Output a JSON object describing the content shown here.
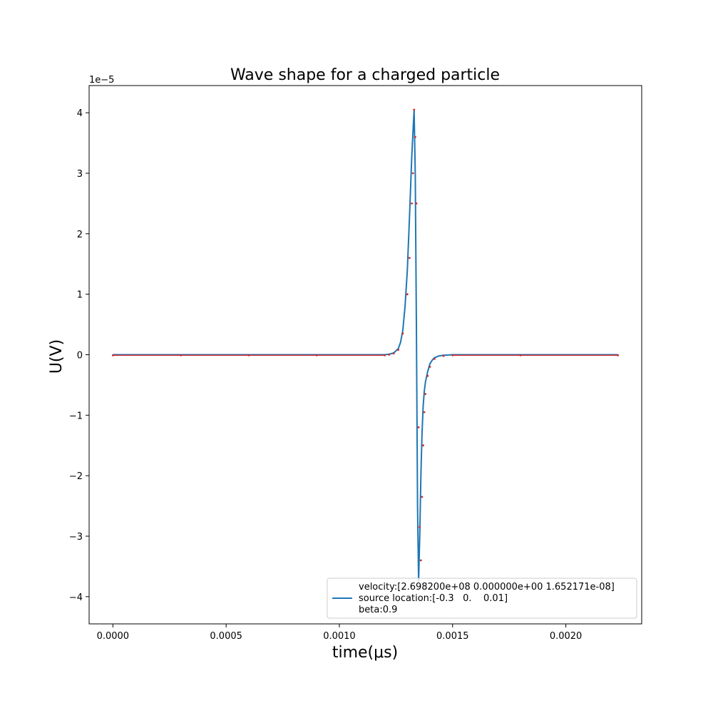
{
  "chart_data": {
    "type": "line",
    "title": "Wave shape for a charged particle",
    "xlabel": "time(μs)",
    "ylabel": "U(V)",
    "y_offset_label": "1e−5",
    "xlim": [
      -0.000105,
      0.002335
    ],
    "ylim": [
      -4.45,
      4.45
    ],
    "y_scale": 1e-05,
    "x_ticks": [
      0.0,
      0.0005,
      0.001,
      0.0015,
      0.002
    ],
    "x_tick_labels": [
      "0.0000",
      "0.0005",
      "0.0010",
      "0.0015",
      "0.0020"
    ],
    "y_ticks": [
      -4,
      -3,
      -2,
      -1,
      0,
      1,
      2,
      3,
      4
    ],
    "y_tick_labels": [
      "−4",
      "−3",
      "−2",
      "−1",
      "0",
      "1",
      "2",
      "3",
      "4"
    ],
    "grid": false,
    "legend_position": "lower-right",
    "legend_lines": [
      "velocity:[2.698200e+08 0.000000e+00 1.652171e-08]",
      "source location:[-0.3   0.    0.01]",
      "beta:0.9"
    ],
    "series": [
      {
        "color": "#1f77b4",
        "style": "line",
        "x": [
          0.0,
          0.0012,
          0.00122,
          0.00124,
          0.00126,
          0.00127,
          0.00128,
          0.00129,
          0.0013,
          0.00131,
          0.00132,
          0.00133,
          0.001335,
          0.00134,
          0.001345,
          0.00135,
          0.001355,
          0.00136,
          0.001365,
          0.00137,
          0.001375,
          0.00138,
          0.00139,
          0.0014,
          0.00141,
          0.00142,
          0.00144,
          0.00146,
          0.0015,
          0.00223
        ],
        "y": [
          0.0,
          0.0,
          0.01,
          0.03,
          0.1,
          0.2,
          0.4,
          0.8,
          1.4,
          2.3,
          3.3,
          4.05,
          3.0,
          0.5,
          -2.5,
          -3.75,
          -3.0,
          -2.0,
          -1.3,
          -0.85,
          -0.6,
          -0.45,
          -0.28,
          -0.15,
          -0.09,
          -0.05,
          -0.02,
          -0.01,
          0.0,
          0.0
        ]
      },
      {
        "color": "#d62728",
        "style": "markers",
        "x": [
          0.0,
          0.0003,
          0.0006,
          0.0009,
          0.0012,
          0.00122,
          0.00124,
          0.00126,
          0.00128,
          0.0013,
          0.00131,
          0.00132,
          0.001325,
          0.00133,
          0.001335,
          0.00134,
          0.00135,
          0.001355,
          0.00136,
          0.001365,
          0.00137,
          0.001375,
          0.00138,
          0.00139,
          0.0014,
          0.00142,
          0.00146,
          0.0015,
          0.0018,
          0.00223
        ],
        "y": [
          -0.01,
          -0.01,
          -0.01,
          -0.01,
          -0.01,
          0.0,
          0.02,
          0.08,
          0.35,
          1.0,
          1.6,
          2.5,
          3.0,
          4.05,
          3.6,
          2.5,
          -1.2,
          -2.85,
          -3.4,
          -2.35,
          -1.5,
          -0.95,
          -0.65,
          -0.35,
          -0.2,
          -0.07,
          -0.02,
          -0.01,
          -0.01,
          -0.01
        ]
      }
    ]
  }
}
